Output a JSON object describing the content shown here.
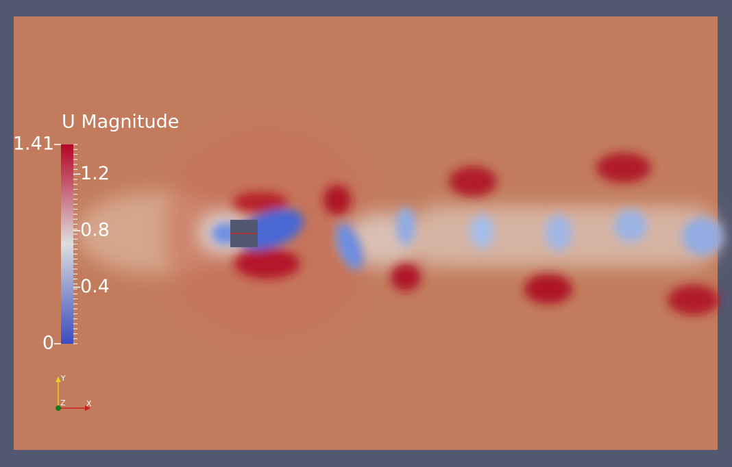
{
  "legend": {
    "title": "U Magnitude",
    "range": [
      0,
      1.41
    ],
    "ticks": [
      0,
      0.4,
      0.8,
      1.2,
      1.41
    ],
    "colors": [
      "#3b4cc0",
      "#dddddd",
      "#b40426"
    ]
  },
  "axes_triad": {
    "x": "X",
    "y": "Y",
    "z": "Z"
  }
}
